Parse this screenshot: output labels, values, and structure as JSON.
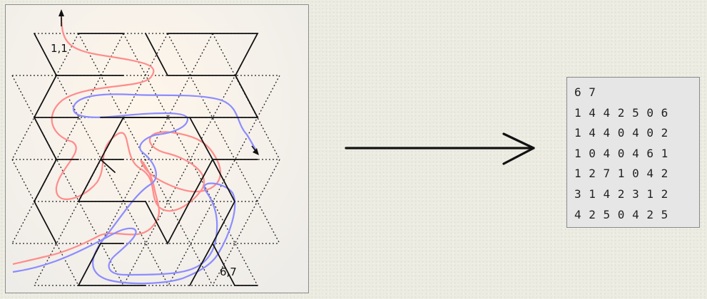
{
  "maze": {
    "start_label": "1,1",
    "end_label": "6,7"
  },
  "output": {
    "lines": [
      "6 7",
      "1 4 4 2 5 0 6",
      "1 4 4 0 4 0 2",
      "1 0 4 0 4 6 1",
      "1 2 7 1 0 4 2",
      "3 1 4 2 3 1 2",
      "4 2 5 0 4 2 5"
    ]
  },
  "colors": {
    "red_path": "#ff8c8c",
    "blue_path": "#8c8cff",
    "walls": "#111111"
  },
  "icons": [
    "right-arrow-icon"
  ]
}
